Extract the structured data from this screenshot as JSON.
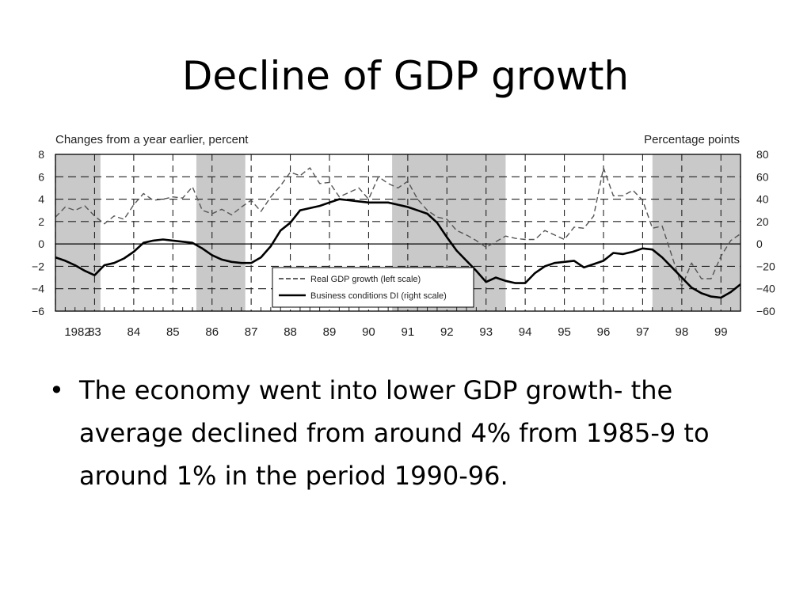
{
  "slide": {
    "title": "Decline of GDP growth",
    "bullets": [
      {
        "marker": "•",
        "text": "The economy went into lower GDP growth- the average declined from around 4% from 1985-9 to around 1% in the period 1990-96."
      }
    ]
  },
  "chart_data": {
    "type": "line",
    "left_axis_title": "Changes from a year earlier, percent",
    "right_axis_title": "Percentage points",
    "x_tick_labels": [
      "1982",
      "83",
      "84",
      "85",
      "86",
      "87",
      "88",
      "89",
      "90",
      "91",
      "92",
      "93",
      "94",
      "95",
      "96",
      "97",
      "98",
      "99"
    ],
    "x_range": [
      1982,
      1999.5
    ],
    "left_ylim": [
      -6,
      8
    ],
    "left_ticks": [
      8,
      6,
      4,
      2,
      0,
      -2,
      -4,
      -6
    ],
    "left_tick_labels": [
      "8",
      "6",
      "4",
      "2",
      "0",
      "−2",
      "−4",
      "−6"
    ],
    "right_ylim": [
      -60,
      80
    ],
    "right_tick_labels": [
      "80",
      "60",
      "40",
      "20",
      "0",
      "−20",
      "−40",
      "−60"
    ],
    "grid": true,
    "legend_position": "bottom-center",
    "recession_shading": [
      [
        1982.0,
        1983.15
      ],
      [
        1985.6,
        1986.85
      ],
      [
        1990.6,
        1993.5
      ],
      [
        1997.25,
        1999.5
      ]
    ],
    "series": [
      {
        "name": "Real GDP growth (left scale)",
        "style": "dashed",
        "axis": "left",
        "x": [
          1982.0,
          1982.25,
          1982.5,
          1982.75,
          1983.0,
          1983.25,
          1983.5,
          1983.75,
          1984.0,
          1984.25,
          1984.5,
          1984.75,
          1985.0,
          1985.25,
          1985.5,
          1985.75,
          1986.0,
          1986.25,
          1986.5,
          1986.75,
          1987.0,
          1987.25,
          1987.5,
          1987.75,
          1988.0,
          1988.25,
          1988.5,
          1988.75,
          1989.0,
          1989.25,
          1989.5,
          1989.75,
          1990.0,
          1990.25,
          1990.5,
          1990.75,
          1991.0,
          1991.25,
          1991.5,
          1991.75,
          1992.0,
          1992.25,
          1992.5,
          1992.75,
          1993.0,
          1993.25,
          1993.5,
          1993.75,
          1994.0,
          1994.25,
          1994.5,
          1994.75,
          1995.0,
          1995.25,
          1995.5,
          1995.75,
          1996.0,
          1996.25,
          1996.5,
          1996.75,
          1997.0,
          1997.25,
          1997.5,
          1997.75,
          1998.0,
          1998.25,
          1998.5,
          1998.75,
          1999.0,
          1999.25,
          1999.5
        ],
        "values": [
          2.4,
          3.3,
          3.0,
          3.4,
          2.5,
          1.8,
          2.5,
          2.2,
          3.5,
          4.5,
          3.9,
          4.0,
          4.2,
          4.1,
          5.1,
          3.0,
          2.7,
          3.1,
          2.6,
          3.3,
          3.9,
          2.9,
          4.2,
          5.2,
          6.4,
          6.1,
          6.8,
          5.4,
          5.5,
          4.2,
          4.6,
          5.0,
          4.0,
          6.0,
          5.4,
          5.0,
          5.6,
          4.0,
          3.0,
          2.4,
          2.2,
          1.2,
          0.8,
          0.3,
          -0.3,
          0.2,
          0.7,
          0.5,
          0.4,
          0.4,
          1.2,
          0.8,
          0.4,
          1.5,
          1.4,
          2.5,
          6.8,
          4.3,
          4.3,
          4.8,
          3.9,
          1.4,
          1.6,
          -1.1,
          -3.8,
          -1.7,
          -3.1,
          -3.1,
          -1.1,
          0.3,
          0.9
        ]
      },
      {
        "name": "Business conditions DI (right scale)",
        "style": "solid",
        "axis": "right",
        "x": [
          1982.0,
          1982.25,
          1982.5,
          1982.75,
          1983.0,
          1983.25,
          1983.5,
          1983.75,
          1984.0,
          1984.25,
          1984.5,
          1984.75,
          1985.0,
          1985.25,
          1985.5,
          1985.75,
          1986.0,
          1986.25,
          1986.5,
          1986.75,
          1987.0,
          1987.25,
          1987.5,
          1987.75,
          1988.0,
          1988.25,
          1988.5,
          1988.75,
          1989.0,
          1989.25,
          1989.5,
          1989.75,
          1990.0,
          1990.25,
          1990.5,
          1990.75,
          1991.0,
          1991.25,
          1991.5,
          1991.75,
          1992.0,
          1992.25,
          1992.5,
          1992.75,
          1993.0,
          1993.25,
          1993.5,
          1993.75,
          1994.0,
          1994.25,
          1994.5,
          1994.75,
          1995.0,
          1995.25,
          1995.5,
          1995.75,
          1996.0,
          1996.25,
          1996.5,
          1996.75,
          1997.0,
          1997.25,
          1997.5,
          1997.75,
          1998.0,
          1998.25,
          1998.5,
          1998.75,
          1999.0,
          1999.25,
          1999.5
        ],
        "values": [
          -12,
          -15,
          -19,
          -24,
          -28,
          -19,
          -17,
          -13,
          -7,
          1,
          3,
          4,
          3,
          2,
          1,
          -4,
          -10,
          -14,
          -16,
          -17,
          -17,
          -12,
          -2,
          12,
          19,
          30,
          32,
          34,
          37,
          40,
          39,
          38,
          37,
          37,
          37,
          35,
          33,
          30,
          27,
          19,
          6,
          -6,
          -15,
          -24,
          -34,
          -30,
          -33,
          -35,
          -35,
          -26,
          -20,
          -17,
          -16,
          -15,
          -21,
          -18,
          -15,
          -8,
          -9,
          -7,
          -4,
          -5,
          -12,
          -21,
          -30,
          -39,
          -44,
          -47,
          -48,
          -43,
          -36
        ]
      }
    ]
  }
}
